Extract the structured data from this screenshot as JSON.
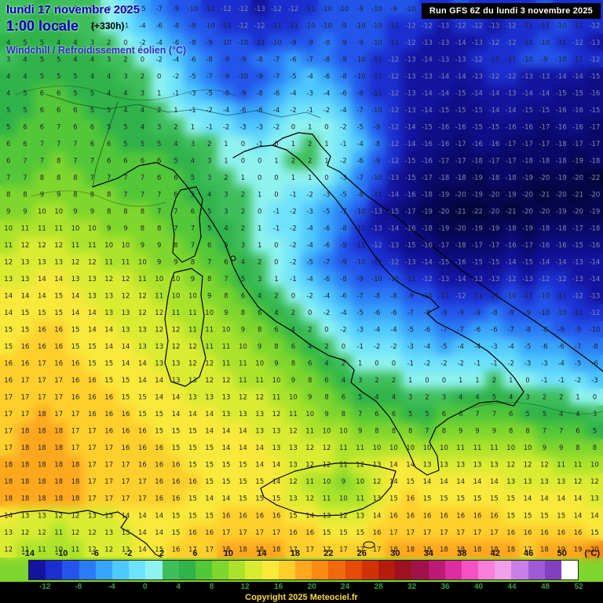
{
  "header": {
    "date_line": "lundi 17 novembre 2025",
    "time_line": "1:00 locale",
    "offset_label": "(+330h)",
    "variable_label": "Windchill / Refroidissement éolien (°C)",
    "run_label": "Run GFS 6Z du lundi 3 novembre 2025"
  },
  "footer": {
    "copyright": "Copyright 2025 Meteociel.fr",
    "unit_label": "(°C)"
  },
  "scale": {
    "top_labels": [
      -14,
      -10,
      -6,
      -2,
      2,
      6,
      10,
      14,
      18,
      22,
      26,
      30,
      34,
      38,
      42,
      46,
      50
    ],
    "bottom_labels": [
      -12,
      -8,
      -4,
      0,
      4,
      8,
      12,
      16,
      20,
      24,
      28,
      32,
      36,
      40,
      44,
      48,
      52
    ],
    "colors": [
      "#1414a0",
      "#1b2fd0",
      "#2355ea",
      "#2a7cf6",
      "#38a4fb",
      "#4fc8fd",
      "#6fe2fb",
      "#8ff2ef",
      "#3fbf5c",
      "#2fb34a",
      "#52c738",
      "#7fd62c",
      "#abe32a",
      "#d9ec31",
      "#f8e93a",
      "#ffcf2c",
      "#ffa81e",
      "#f98a12",
      "#f0690c",
      "#e44c08",
      "#d03208",
      "#b61c0c",
      "#9c1220",
      "#a01348",
      "#bc1a74",
      "#dd2da0",
      "#f252c4",
      "#fa7fd8",
      "#f0a0e8",
      "#c97fe8",
      "#a05ad6",
      "#8040c0",
      "#ffffff"
    ]
  },
  "chart_data": {
    "type": "heatmap",
    "title": "Windchill / Refroidissement éolien (°C)",
    "unit": "°C",
    "grid_cols": 36,
    "grid_rows": 33,
    "value_range": [
      -24,
      20
    ],
    "values": [
      [
        2,
        3,
        4,
        3,
        3,
        2,
        0,
        -2,
        -5,
        -7,
        -9,
        -10,
        -11,
        -12,
        -12,
        -13,
        -12,
        -12,
        -11,
        -10,
        -10,
        -9,
        -10,
        -9,
        -10,
        -11,
        -11,
        -10,
        -11,
        -12,
        -11,
        -11,
        -10,
        -11,
        -11,
        -12
      ],
      [
        3,
        4,
        5,
        4,
        3,
        3,
        1,
        -1,
        -4,
        -6,
        -8,
        -9,
        -10,
        -11,
        -12,
        -12,
        -11,
        -11,
        -10,
        -10,
        -9,
        -10,
        -10,
        -11,
        -12,
        -12,
        -13,
        -12,
        -12,
        -13,
        -12,
        -11,
        -11,
        -10,
        -11,
        -12
      ],
      [
        4,
        5,
        5,
        4,
        4,
        3,
        2,
        0,
        -2,
        -4,
        -6,
        -8,
        -9,
        -10,
        -10,
        -11,
        -10,
        -9,
        -9,
        -8,
        -9,
        -9,
        -10,
        -11,
        -12,
        -13,
        -13,
        -14,
        -13,
        -12,
        -12,
        -11,
        -10,
        -11,
        -12,
        -13
      ],
      [
        3,
        4,
        5,
        5,
        4,
        4,
        3,
        2,
        0,
        -2,
        -4,
        -6,
        -8,
        -9,
        -9,
        -8,
        -7,
        -6,
        -7,
        -8,
        -9,
        -10,
        -11,
        -12,
        -13,
        -14,
        -13,
        -13,
        -12,
        -11,
        -11,
        -10,
        -9,
        -10,
        -11,
        -12
      ],
      [
        4,
        4,
        5,
        5,
        5,
        4,
        4,
        3,
        2,
        0,
        -2,
        -5,
        -7,
        -9,
        -10,
        -9,
        -7,
        -5,
        -4,
        -6,
        -8,
        -10,
        -11,
        -12,
        -13,
        -13,
        -14,
        -14,
        -13,
        -12,
        -12,
        -13,
        -13,
        -14,
        -14,
        -15
      ],
      [
        4,
        5,
        6,
        6,
        5,
        5,
        4,
        4,
        3,
        1,
        -1,
        -3,
        -5,
        -8,
        -9,
        -8,
        -6,
        -4,
        -3,
        -4,
        -6,
        -9,
        -11,
        -12,
        -13,
        -14,
        -14,
        -15,
        -14,
        -14,
        -13,
        -14,
        -14,
        -15,
        -15,
        -16
      ],
      [
        5,
        5,
        6,
        6,
        6,
        5,
        5,
        4,
        4,
        2,
        1,
        -1,
        -2,
        -4,
        -6,
        -6,
        -4,
        -2,
        -1,
        -2,
        -4,
        -7,
        -10,
        -12,
        -13,
        -14,
        -15,
        -15,
        -15,
        -14,
        -14,
        -15,
        -15,
        -16,
        -16,
        -15
      ],
      [
        5,
        6,
        6,
        7,
        6,
        6,
        5,
        5,
        4,
        3,
        2,
        1,
        -1,
        -2,
        -3,
        -3,
        -2,
        0,
        1,
        0,
        -2,
        -5,
        -9,
        -12,
        -14,
        -15,
        -16,
        -16,
        -15,
        -15,
        -16,
        -16,
        -17,
        -16,
        -16,
        -17
      ],
      [
        6,
        6,
        7,
        7,
        7,
        6,
        6,
        5,
        5,
        5,
        4,
        3,
        2,
        1,
        0,
        -1,
        0,
        1,
        2,
        1,
        -1,
        -4,
        -8,
        -12,
        -14,
        -16,
        -16,
        -17,
        -16,
        -16,
        -17,
        -17,
        -17,
        -18,
        -17,
        -17
      ],
      [
        6,
        7,
        7,
        8,
        7,
        7,
        6,
        6,
        6,
        6,
        5,
        4,
        3,
        1,
        0,
        0,
        1,
        2,
        2,
        1,
        -2,
        -6,
        -9,
        -12,
        -15,
        -16,
        -17,
        -17,
        -18,
        -17,
        -17,
        -18,
        -18,
        -18,
        -19,
        -18
      ],
      [
        7,
        7,
        8,
        8,
        8,
        7,
        7,
        7,
        7,
        6,
        6,
        5,
        3,
        2,
        1,
        0,
        0,
        1,
        1,
        0,
        -3,
        -7,
        -10,
        -13,
        -15,
        -17,
        -18,
        -18,
        -19,
        -18,
        -18,
        -19,
        -20,
        -19,
        -20,
        -22
      ],
      [
        8,
        8,
        9,
        9,
        8,
        8,
        8,
        7,
        7,
        7,
        6,
        5,
        4,
        3,
        2,
        1,
        0,
        -1,
        -2,
        -3,
        -5,
        -8,
        -11,
        -14,
        -16,
        -18,
        -19,
        -20,
        -19,
        -20,
        -19,
        -20,
        -21,
        -20,
        -21,
        -20
      ],
      [
        9,
        9,
        10,
        10,
        9,
        9,
        8,
        8,
        8,
        7,
        7,
        6,
        5,
        3,
        2,
        0,
        -1,
        -2,
        -3,
        -5,
        -7,
        -10,
        -13,
        -15,
        -17,
        -19,
        -20,
        -21,
        -22,
        -20,
        -21,
        -20,
        -20,
        -19,
        -20,
        -19
      ],
      [
        10,
        11,
        11,
        11,
        10,
        10,
        9,
        9,
        8,
        8,
        7,
        7,
        5,
        4,
        2,
        1,
        -1,
        -2,
        -4,
        -6,
        -8,
        -11,
        -13,
        -14,
        -16,
        -18,
        -19,
        -20,
        -19,
        -19,
        -18,
        -19,
        -18,
        -18,
        -17,
        -18
      ],
      [
        11,
        12,
        12,
        12,
        11,
        11,
        10,
        10,
        9,
        9,
        8,
        7,
        6,
        5,
        3,
        1,
        0,
        -2,
        -4,
        -6,
        -9,
        -11,
        -12,
        -13,
        -15,
        -16,
        -17,
        -18,
        -17,
        -17,
        -16,
        -17,
        -16,
        -16,
        -15,
        -16
      ],
      [
        12,
        13,
        13,
        13,
        12,
        12,
        11,
        11,
        10,
        9,
        9,
        8,
        7,
        6,
        4,
        2,
        0,
        -2,
        -5,
        -7,
        -9,
        -10,
        -11,
        -12,
        -13,
        -14,
        -15,
        -16,
        -15,
        -15,
        -14,
        -15,
        -14,
        -14,
        -13,
        -14
      ],
      [
        13,
        13,
        14,
        14,
        13,
        13,
        12,
        12,
        11,
        10,
        10,
        9,
        8,
        7,
        5,
        3,
        1,
        -1,
        -4,
        -6,
        -8,
        -9,
        -10,
        -10,
        -11,
        -12,
        -13,
        -14,
        -13,
        -13,
        -12,
        -13,
        -12,
        -12,
        -13,
        -14
      ],
      [
        14,
        14,
        14,
        15,
        14,
        13,
        13,
        12,
        12,
        11,
        10,
        10,
        9,
        8,
        6,
        4,
        2,
        0,
        -2,
        -4,
        -6,
        -7,
        -8,
        -8,
        -9,
        -10,
        -11,
        -12,
        -11,
        -11,
        -10,
        -11,
        -10,
        -11,
        -12,
        -13
      ],
      [
        14,
        15,
        15,
        15,
        14,
        14,
        13,
        13,
        12,
        12,
        11,
        11,
        10,
        9,
        8,
        6,
        4,
        2,
        0,
        -2,
        -4,
        -5,
        -6,
        -6,
        -7,
        -8,
        -9,
        -9,
        -9,
        -8,
        -9,
        -9,
        -10,
        -10,
        -11,
        -12
      ],
      [
        15,
        15,
        16,
        16,
        15,
        14,
        14,
        13,
        13,
        12,
        12,
        11,
        11,
        10,
        9,
        8,
        6,
        4,
        2,
        0,
        -2,
        -3,
        -4,
        -4,
        -5,
        -6,
        -7,
        -7,
        -6,
        -6,
        -7,
        -8,
        -8,
        -9,
        -9,
        -10
      ],
      [
        15,
        16,
        16,
        16,
        15,
        15,
        14,
        14,
        13,
        13,
        12,
        12,
        11,
        11,
        10,
        9,
        8,
        6,
        4,
        2,
        0,
        -1,
        -2,
        -2,
        -3,
        -4,
        -5,
        -4,
        -4,
        -3,
        -4,
        -5,
        -6,
        -6,
        -7,
        -8
      ],
      [
        16,
        16,
        17,
        16,
        16,
        15,
        15,
        14,
        14,
        13,
        13,
        12,
        12,
        11,
        11,
        10,
        9,
        8,
        6,
        4,
        2,
        1,
        0,
        0,
        -1,
        -2,
        -2,
        -2,
        -1,
        -1,
        -2,
        -3,
        -3,
        -4,
        -5,
        -6
      ],
      [
        16,
        17,
        17,
        17,
        16,
        16,
        15,
        15,
        14,
        14,
        13,
        13,
        12,
        12,
        11,
        11,
        10,
        9,
        8,
        6,
        4,
        3,
        2,
        2,
        1,
        0,
        0,
        1,
        1,
        2,
        1,
        0,
        -1,
        -1,
        -2,
        -3
      ],
      [
        17,
        17,
        17,
        17,
        16,
        16,
        16,
        15,
        15,
        14,
        14,
        13,
        13,
        13,
        12,
        12,
        11,
        10,
        9,
        8,
        6,
        5,
        4,
        4,
        3,
        2,
        3,
        4,
        4,
        5,
        4,
        3,
        2,
        2,
        1,
        0
      ],
      [
        17,
        17,
        18,
        17,
        17,
        16,
        16,
        16,
        15,
        15,
        14,
        14,
        14,
        13,
        13,
        13,
        12,
        11,
        10,
        9,
        8,
        7,
        6,
        6,
        5,
        5,
        6,
        6,
        7,
        7,
        6,
        5,
        5,
        4,
        4,
        3
      ],
      [
        17,
        18,
        18,
        18,
        17,
        17,
        16,
        16,
        16,
        15,
        15,
        15,
        14,
        14,
        14,
        13,
        13,
        12,
        11,
        10,
        10,
        9,
        8,
        8,
        8,
        7,
        8,
        9,
        9,
        9,
        8,
        8,
        7,
        7,
        6,
        5
      ],
      [
        17,
        18,
        18,
        18,
        17,
        17,
        17,
        16,
        16,
        16,
        15,
        15,
        15,
        14,
        14,
        14,
        13,
        13,
        12,
        12,
        11,
        11,
        10,
        10,
        10,
        10,
        10,
        11,
        11,
        11,
        10,
        10,
        9,
        9,
        8,
        8
      ],
      [
        18,
        18,
        18,
        18,
        18,
        17,
        17,
        17,
        16,
        16,
        16,
        15,
        15,
        15,
        15,
        14,
        14,
        13,
        12,
        12,
        11,
        12,
        13,
        14,
        14,
        13,
        13,
        13,
        13,
        13,
        12,
        12,
        12,
        11,
        11,
        10
      ],
      [
        18,
        18,
        18,
        18,
        18,
        17,
        17,
        17,
        17,
        16,
        16,
        16,
        15,
        15,
        15,
        15,
        14,
        12,
        11,
        10,
        9,
        10,
        12,
        14,
        15,
        14,
        14,
        14,
        14,
        14,
        13,
        13,
        13,
        13,
        12,
        12
      ],
      [
        18,
        18,
        18,
        18,
        18,
        17,
        17,
        17,
        17,
        16,
        16,
        15,
        14,
        14,
        15,
        15,
        15,
        13,
        12,
        11,
        10,
        11,
        13,
        15,
        16,
        15,
        15,
        15,
        15,
        15,
        15,
        14,
        14,
        14,
        14,
        13
      ],
      [
        14,
        13,
        13,
        12,
        12,
        13,
        13,
        14,
        14,
        14,
        15,
        15,
        15,
        16,
        16,
        16,
        16,
        15,
        14,
        13,
        12,
        13,
        14,
        16,
        16,
        16,
        16,
        16,
        16,
        16,
        15,
        15,
        15,
        15,
        14,
        14
      ],
      [
        13,
        12,
        12,
        11,
        12,
        12,
        13,
        13,
        14,
        14,
        15,
        16,
        16,
        17,
        17,
        17,
        17,
        16,
        16,
        15,
        15,
        15,
        16,
        17,
        17,
        17,
        17,
        17,
        17,
        17,
        16,
        16,
        16,
        16,
        16,
        15
      ],
      [
        12,
        11,
        11,
        10,
        11,
        12,
        12,
        13,
        14,
        15,
        16,
        17,
        17,
        18,
        18,
        18,
        18,
        17,
        17,
        17,
        17,
        17,
        17,
        18,
        18,
        18,
        18,
        18,
        18,
        18,
        18,
        17,
        18,
        19,
        19,
        20
      ]
    ]
  },
  "colors": {
    "header_blue": "#0000b6",
    "variable_blue": "#2d2dcc",
    "run_box_bg": "#000000",
    "run_box_text": "#ffffff",
    "copyright_yellow": "#ffd83a",
    "scale_bottom_green": "#3f9b3f",
    "coastline": "#000000"
  }
}
